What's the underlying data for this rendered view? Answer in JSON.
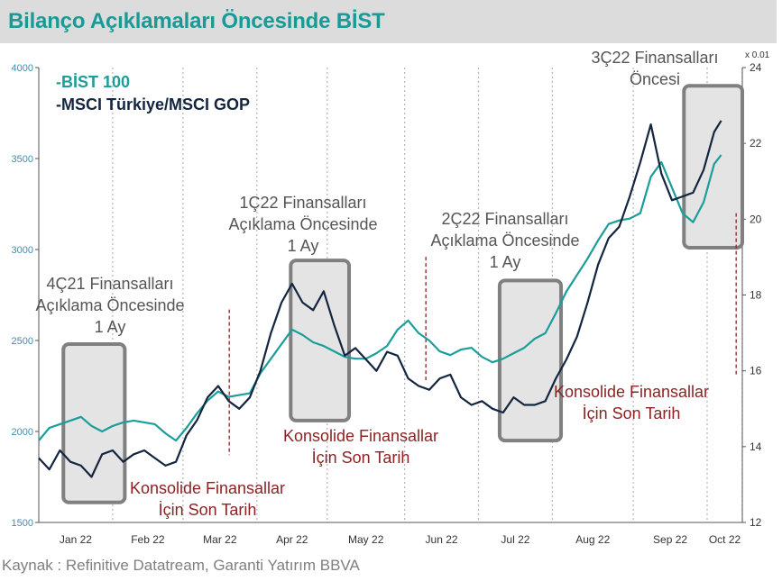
{
  "title": "Bilanço Açıklamaları Öncesinde BİST",
  "source": "Kaynak : Refinitive Datatream, Garanti Yatırım BBVA",
  "colors": {
    "bist": "#1a9e9a",
    "msci": "#14253f",
    "annotation": "#8b2323",
    "box_fill": "#e4e4e4",
    "box_stroke": "#808080",
    "axis_text": "#3a8fb0",
    "title_bar": "#dcdcdc"
  },
  "chart_data": {
    "type": "line",
    "legend": [
      {
        "series": "bist",
        "label": "-BİST 100"
      },
      {
        "series": "msci",
        "label": "-MSCI Türkiye/MSCI GOP"
      }
    ],
    "y_left": {
      "min": 1500,
      "max": 4000,
      "ticks": [
        1500,
        2000,
        2500,
        3000,
        3500,
        4000
      ]
    },
    "y_right": {
      "min": 12,
      "max": 24,
      "ticks": [
        12,
        14,
        16,
        18,
        20,
        22,
        24
      ],
      "multiplier_label": "x 0.01"
    },
    "x_month_labels": [
      "Jan 22",
      "Feb 22",
      "Mar 22",
      "Apr 22",
      "May 22",
      "Jun 22",
      "Jul 22",
      "Aug 22",
      "Sep 22",
      "Oct 22"
    ],
    "x_domain": [
      0,
      200
    ],
    "month_gridlines": [
      0,
      21,
      41,
      62,
      82,
      104,
      125,
      146,
      169,
      190,
      200
    ],
    "series": [
      {
        "key": "bist",
        "axis": "left",
        "x": [
          0,
          3,
          6,
          9,
          12,
          15,
          18,
          21,
          24,
          27,
          30,
          33,
          36,
          39,
          42,
          45,
          48,
          51,
          54,
          57,
          60,
          63,
          66,
          69,
          72,
          75,
          78,
          81,
          84,
          87,
          90,
          93,
          96,
          99,
          102,
          105,
          108,
          111,
          114,
          117,
          120,
          123,
          126,
          129,
          132,
          135,
          138,
          141,
          144,
          147,
          150,
          153,
          156,
          159,
          162,
          165,
          168,
          171,
          174,
          177,
          180,
          183,
          186,
          189,
          192,
          194
        ],
        "values": [
          1950,
          2020,
          2040,
          2060,
          2080,
          2030,
          2000,
          2030,
          2050,
          2060,
          2050,
          2040,
          1990,
          1950,
          2020,
          2100,
          2170,
          2220,
          2190,
          2200,
          2210,
          2320,
          2400,
          2480,
          2560,
          2530,
          2490,
          2470,
          2440,
          2410,
          2400,
          2400,
          2430,
          2470,
          2560,
          2610,
          2540,
          2500,
          2440,
          2420,
          2450,
          2460,
          2410,
          2380,
          2400,
          2430,
          2460,
          2510,
          2540,
          2650,
          2770,
          2860,
          2950,
          3050,
          3140,
          3160,
          3170,
          3200,
          3400,
          3480,
          3340,
          3200,
          3150,
          3260,
          3470,
          3520
        ]
      },
      {
        "key": "msci",
        "axis": "right",
        "x": [
          0,
          3,
          6,
          9,
          12,
          15,
          18,
          21,
          24,
          27,
          30,
          33,
          36,
          39,
          42,
          45,
          48,
          51,
          54,
          57,
          60,
          63,
          66,
          69,
          72,
          75,
          78,
          81,
          84,
          87,
          90,
          93,
          96,
          99,
          102,
          105,
          108,
          111,
          114,
          117,
          120,
          123,
          126,
          129,
          132,
          135,
          138,
          141,
          144,
          147,
          150,
          153,
          156,
          159,
          162,
          165,
          168,
          171,
          174,
          177,
          180,
          183,
          186,
          189,
          192,
          194
        ],
        "values": [
          13.7,
          13.4,
          13.9,
          13.6,
          13.5,
          13.2,
          13.8,
          13.9,
          13.6,
          13.8,
          13.9,
          13.7,
          13.5,
          13.6,
          14.3,
          14.7,
          15.3,
          15.6,
          15.2,
          15.0,
          15.3,
          16.0,
          17.0,
          17.8,
          18.3,
          17.8,
          17.6,
          18.1,
          17.2,
          16.4,
          16.6,
          16.3,
          16.0,
          16.5,
          16.4,
          15.8,
          15.6,
          15.5,
          15.8,
          15.9,
          15.3,
          15.1,
          15.2,
          15.0,
          14.9,
          15.3,
          15.1,
          15.1,
          15.2,
          15.8,
          16.3,
          16.9,
          17.8,
          18.8,
          19.5,
          19.8,
          20.6,
          21.5,
          22.5,
          21.2,
          20.5,
          20.6,
          20.7,
          21.3,
          22.3,
          22.6
        ]
      }
    ],
    "red_dashed_lines": [
      62,
      126,
      227
    ],
    "boxes": [
      {
        "x0": 8,
        "x1": 28,
        "y0": 2480,
        "y1": 1610
      },
      {
        "x0": 82,
        "x1": 101,
        "y0": 2940,
        "y1": 2060
      },
      {
        "x0": 150,
        "x1": 170,
        "y0": 2830,
        "y1": 1950
      },
      {
        "x0": 210,
        "x1": 229,
        "y0": 3900,
        "y1": 3010
      }
    ],
    "annotations": {
      "q4_21": [
        "4Ç21 Finansalları",
        "Açıklama Öncesinde",
        "1 Ay"
      ],
      "q1_22": [
        "1Ç22 Finansalları",
        "Açıklama Öncesinde",
        "1 Ay"
      ],
      "q2_22": [
        "2Ç22 Finansalları",
        "Açıklama Öncesinde",
        "1 Ay"
      ],
      "q3_22": [
        "3Ç22 Finansalları",
        "Öncesi"
      ],
      "kons1": [
        "Konsolide Finansallar",
        "İçin Son Tarih"
      ],
      "kons2": [
        "Konsolide Finansallar",
        "İçin Son Tarih"
      ],
      "kons3": [
        "Konsolide Finansallar",
        "İçin Son Tarih"
      ]
    }
  }
}
